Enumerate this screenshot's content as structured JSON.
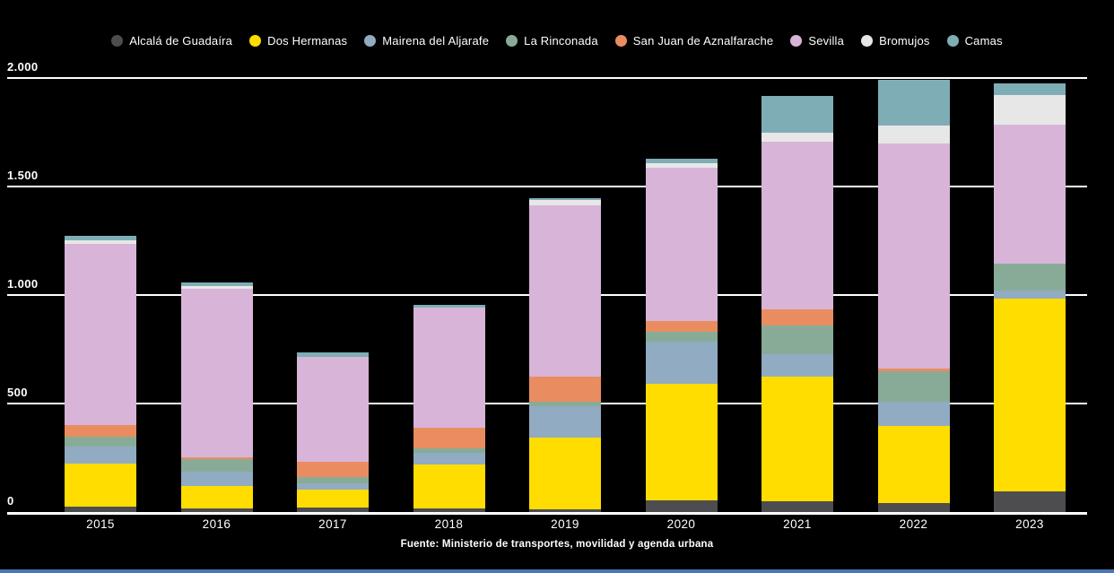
{
  "page": {
    "background": "#000000",
    "bottom_strip_color": "#4a77b4"
  },
  "footer": {
    "source": "Fuente: Ministerio de transportes, movilidad y agenda urbana"
  },
  "chart_data": {
    "type": "bar",
    "stacked": true,
    "title": "",
    "xlabel": "",
    "ylabel": "",
    "ylim": [
      0,
      2000
    ],
    "grid": true,
    "legend_position": "top",
    "background": "#000000",
    "categories": [
      "2015",
      "2016",
      "2017",
      "2018",
      "2019",
      "2020",
      "2021",
      "2022",
      "2023"
    ],
    "yticks": [
      {
        "value": 0,
        "label": "0"
      },
      {
        "value": 500,
        "label": "500"
      },
      {
        "value": 1000,
        "label": "1.000"
      },
      {
        "value": 1500,
        "label": "1.500"
      },
      {
        "value": 2000,
        "label": "2.000"
      }
    ],
    "series": [
      {
        "name": "Alcalá de Guadaíra",
        "color": "#4d4d4f",
        "values": [
          25,
          18,
          22,
          15,
          13,
          53,
          50,
          40,
          95
        ]
      },
      {
        "name": "Dos Hermanas",
        "color": "#ffdd00",
        "values": [
          200,
          101,
          83,
          203,
          328,
          537,
          574,
          358,
          890
        ]
      },
      {
        "name": "Mairena del Aljarafe",
        "color": "#91abc2",
        "values": [
          76,
          69,
          28,
          55,
          145,
          195,
          103,
          110,
          37
        ]
      },
      {
        "name": "La Rinconada",
        "color": "#88ab97",
        "values": [
          48,
          55,
          30,
          21,
          21,
          46,
          131,
          142,
          122
        ]
      },
      {
        "name": "San Juan de Aznalfarache",
        "color": "#e98d60",
        "values": [
          53,
          10,
          69,
          96,
          117,
          48,
          76,
          10,
          0
        ]
      },
      {
        "name": "Sevilla",
        "color": "#d8b5d8",
        "values": [
          833,
          777,
          485,
          554,
          789,
          709,
          772,
          1040,
          640
        ]
      },
      {
        "name": "Bromujos",
        "color": "#e7e7e7",
        "values": [
          17,
          12,
          0,
          0,
          24,
          18,
          41,
          83,
          138
        ]
      },
      {
        "name": "Camas",
        "color": "#7fadb5",
        "values": [
          23,
          18,
          17,
          11,
          10,
          21,
          172,
          207,
          55
        ]
      }
    ],
    "totals": [
      1275,
      1060,
      734,
      955,
      1447,
      1627,
      1919,
      1990,
      1977
    ]
  }
}
